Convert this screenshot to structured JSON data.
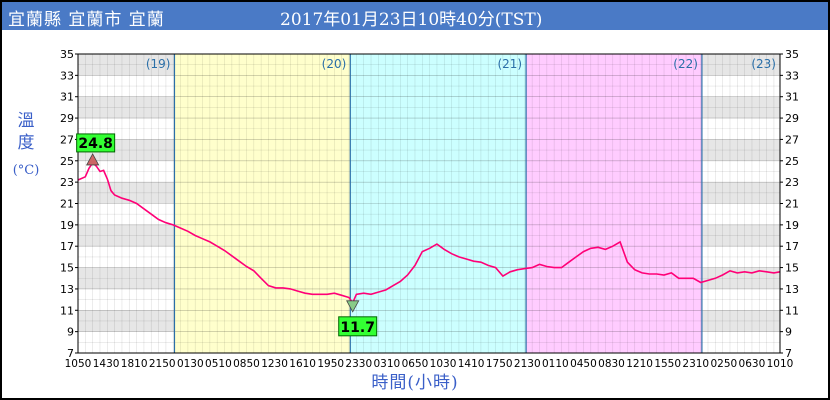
{
  "header": {
    "station": "宜蘭縣 宜蘭市 宜蘭",
    "datetime": "2017年01月23日10時40分(TST)"
  },
  "colors": {
    "header_bg": "#4a7ac6",
    "line": "#ff0077",
    "day_bands": [
      "#ffffff",
      "#ffffcc",
      "#ccffff",
      "#ffccff",
      "#ffffff"
    ],
    "stripe": "#e6e6e6",
    "day_line": "#2b6fa8",
    "day_label": "#2b6fa8",
    "marker_bg": "#33ff33"
  },
  "chart_data": {
    "type": "line",
    "title": "",
    "xlabel": "時間(小時)",
    "ylabel": "溫度",
    "ylabel_unit": "(°C)",
    "ylim": [
      7,
      35
    ],
    "yticks": [
      7,
      9,
      11,
      13,
      15,
      17,
      19,
      21,
      23,
      25,
      27,
      29,
      31,
      33,
      35
    ],
    "x_tick_labels": [
      "1050",
      "1430",
      "1810",
      "2150",
      "0130",
      "0510",
      "0850",
      "1230",
      "1610",
      "1950",
      "2330",
      "0310",
      "0650",
      "1030",
      "1410",
      "1750",
      "2130",
      "0110",
      "0450",
      "0830",
      "1210",
      "1550",
      "2310",
      "0250",
      "0630",
      "1010"
    ],
    "day_labels": [
      "(19)",
      "(20)",
      "(21)",
      "(22)",
      "(23)"
    ],
    "day_start_hours": [
      0,
      13.17,
      37.17,
      61.17,
      85.17
    ],
    "x_range_hours": [
      0,
      95.83
    ],
    "x_origin": "19日10時50分",
    "max": {
      "label": "24.8",
      "hour": 2,
      "value": 24.8
    },
    "min": {
      "label": "11.7",
      "hour": 37.5,
      "value": 11.7
    },
    "series": [
      {
        "x_hours": [
          0,
          1,
          1.5,
          2,
          2.5,
          3,
          3.5,
          4,
          4.5,
          5,
          6,
          7,
          8,
          9,
          10,
          11,
          12,
          13,
          14,
          15,
          16,
          17,
          18,
          19,
          20,
          21,
          22,
          23,
          24,
          25,
          26,
          27,
          28,
          29,
          30,
          31,
          32,
          33,
          34,
          35,
          36,
          37,
          37.5,
          38,
          39,
          40,
          41,
          42,
          43,
          44,
          45,
          46,
          47,
          48,
          49,
          50,
          51,
          52,
          53,
          54,
          55,
          56,
          57,
          58,
          59,
          60,
          61,
          62,
          63,
          64,
          65,
          66,
          67,
          68,
          69,
          70,
          71,
          72,
          73,
          74,
          75,
          76,
          77,
          78,
          79,
          80,
          81,
          82,
          83,
          84,
          85,
          86,
          87,
          88,
          89,
          90,
          91,
          92,
          93,
          94,
          95,
          95.83
        ],
        "values": [
          23.2,
          23.5,
          24.3,
          24.8,
          24.5,
          24.0,
          24.1,
          23.3,
          22.2,
          21.8,
          21.5,
          21.3,
          21.0,
          20.5,
          20.0,
          19.5,
          19.2,
          19.0,
          18.7,
          18.4,
          18.0,
          17.7,
          17.4,
          17.0,
          16.6,
          16.1,
          15.6,
          15.1,
          14.7,
          14.0,
          13.3,
          13.1,
          13.1,
          13.0,
          12.8,
          12.6,
          12.5,
          12.5,
          12.5,
          12.6,
          12.4,
          12.2,
          11.7,
          12.5,
          12.6,
          12.5,
          12.7,
          12.9,
          13.3,
          13.7,
          14.3,
          15.2,
          16.5,
          16.8,
          17.2,
          16.7,
          16.3,
          16.0,
          15.8,
          15.6,
          15.5,
          15.2,
          15.0,
          14.2,
          14.6,
          14.8,
          14.9,
          15.0,
          15.3,
          15.1,
          15.0,
          15.0,
          15.5,
          16.0,
          16.5,
          16.8,
          16.9,
          16.7,
          17.0,
          17.4,
          15.5,
          14.8,
          14.5,
          14.4,
          14.4,
          14.3,
          14.5,
          14.0,
          14.0,
          14.0,
          13.6,
          13.8,
          14.0,
          14.3,
          14.7,
          14.5,
          14.6,
          14.5,
          14.7,
          14.6,
          14.5,
          14.6
        ]
      }
    ]
  }
}
